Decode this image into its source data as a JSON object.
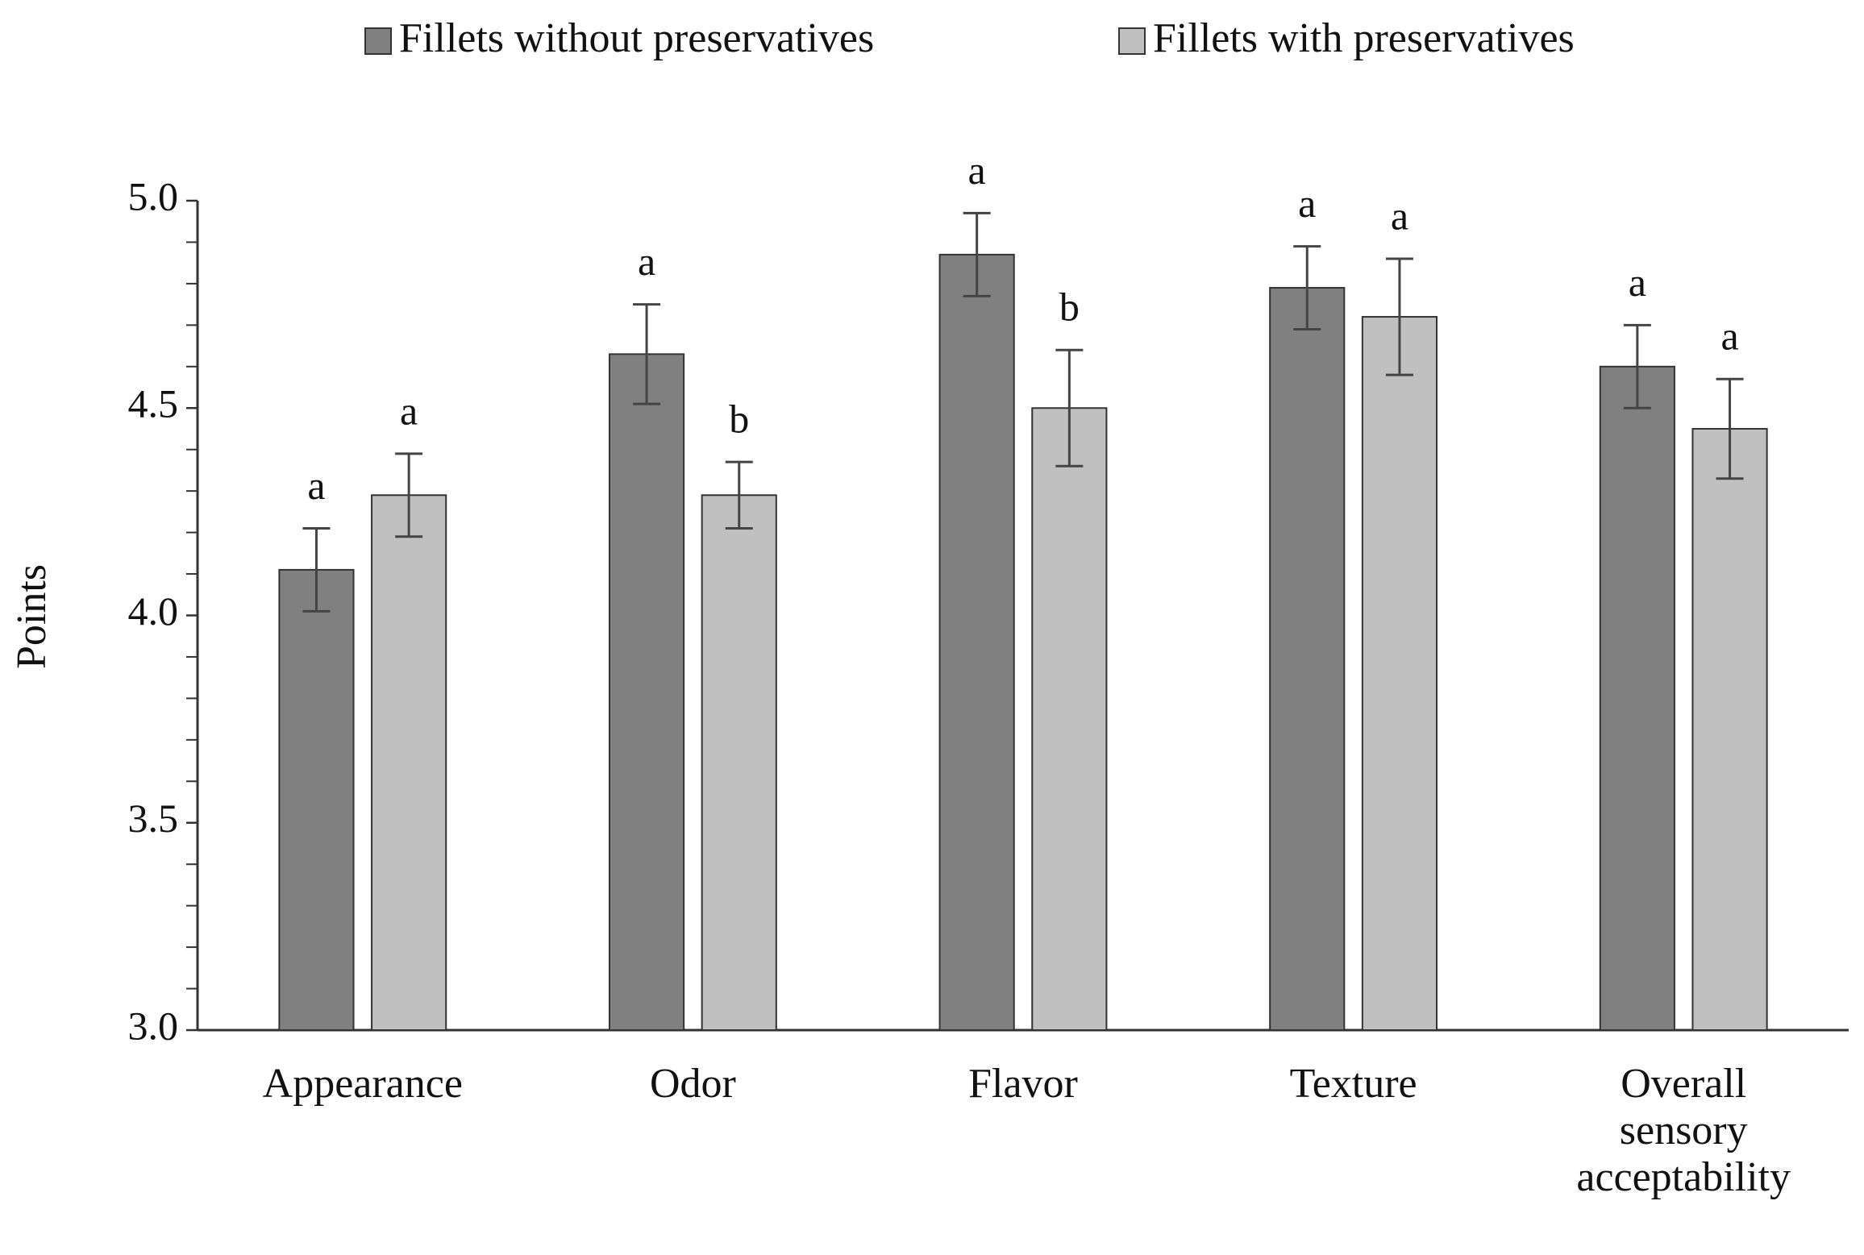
{
  "chart_data": {
    "type": "bar",
    "ylabel": "Points",
    "categories": [
      "Appearance",
      "Odor",
      "Flavor",
      "Texture",
      "Overall sensory acceptability"
    ],
    "series": [
      {
        "name": "Fillets without preservatives",
        "color": "#808080",
        "values": [
          4.11,
          4.63,
          4.87,
          4.79,
          4.6
        ],
        "errors": [
          0.1,
          0.12,
          0.1,
          0.1,
          0.1
        ],
        "letters": [
          "a",
          "a",
          "a",
          "a",
          "a"
        ]
      },
      {
        "name": "Fillets with preservatives",
        "color": "#c0c0c0",
        "values": [
          4.29,
          4.29,
          4.5,
          4.72,
          4.45
        ],
        "errors": [
          0.1,
          0.08,
          0.14,
          0.14,
          0.12
        ],
        "letters": [
          "a",
          "b",
          "b",
          "a",
          "a"
        ]
      }
    ],
    "ylim": [
      3,
      5
    ],
    "yticks": [
      {
        "value": 3,
        "label": "3.0"
      },
      {
        "value": 3.5,
        "label": "3.5"
      },
      {
        "value": 4,
        "label": "4.0"
      },
      {
        "value": 4.5,
        "label": "4.5"
      },
      {
        "value": 5,
        "label": "5.0"
      }
    ],
    "yminorticks": [
      3.1,
      3.2,
      3.3,
      3.4,
      3.6,
      3.7,
      3.8,
      3.9,
      4.1,
      4.2,
      4.3,
      4.4,
      4.6,
      4.7,
      4.8,
      4.9
    ],
    "grid": false,
    "legend": "top"
  }
}
